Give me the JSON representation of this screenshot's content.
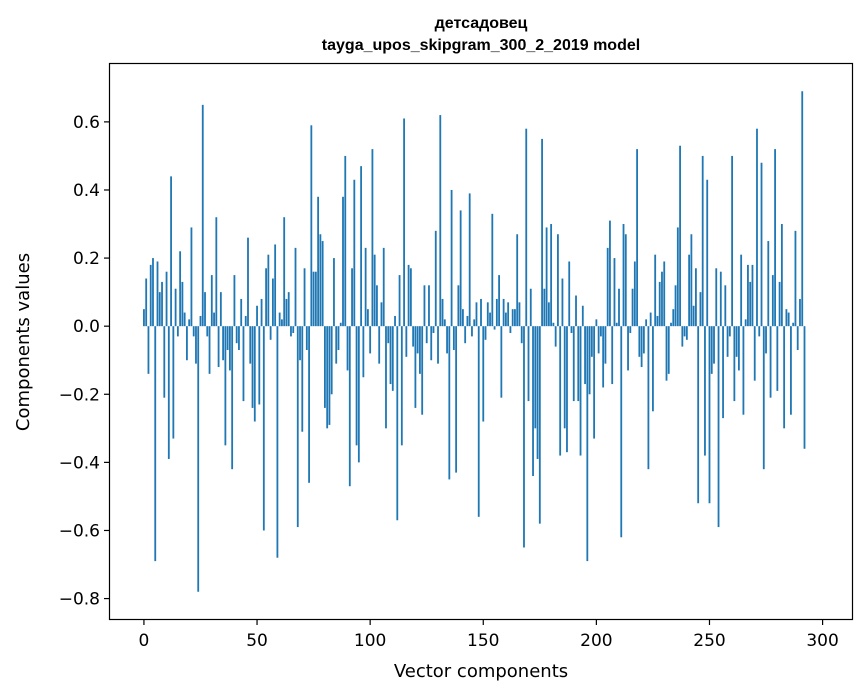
{
  "chart_data": {
    "type": "bar",
    "title": "детсадовец",
    "subtitle": "tayga_upos_skipgram_300_2_2019 model",
    "xlabel": "Vector components",
    "ylabel": "Components values",
    "xlim": [
      -15,
      313
    ],
    "ylim": [
      -0.86,
      0.77
    ],
    "xticks": [
      0,
      50,
      100,
      150,
      200,
      250,
      300
    ],
    "xtick_labels": [
      "0",
      "50",
      "100",
      "150",
      "200",
      "250",
      "300"
    ],
    "yticks": [
      -0.8,
      -0.6,
      -0.4,
      -0.2,
      0.0,
      0.2,
      0.4,
      0.6
    ],
    "ytick_labels": [
      "−0.8",
      "−0.6",
      "−0.4",
      "−0.2",
      "0.0",
      "0.2",
      "0.4",
      "0.6"
    ],
    "grid": false,
    "bar_color": "#1f77b4",
    "bar_width": 0.8,
    "series": [
      {
        "values": [
          0.05,
          0.14,
          -0.14,
          0.18,
          0.2,
          -0.69,
          0.19,
          0.1,
          0.13,
          -0.21,
          0.16,
          -0.39,
          0.44,
          -0.33,
          0.11,
          -0.03,
          0.22,
          0.13,
          0.04,
          -0.1,
          0.02,
          0.29,
          -0.03,
          -0.11,
          -0.78,
          0.03,
          0.65,
          0.1,
          -0.03,
          -0.14,
          0.15,
          0.04,
          0.32,
          -0.12,
          0.1,
          -0.1,
          -0.35,
          -0.07,
          -0.13,
          -0.42,
          0.15,
          -0.05,
          -0.07,
          0.08,
          -0.22,
          0.03,
          0.26,
          -0.11,
          -0.24,
          -0.28,
          0.06,
          -0.23,
          0.08,
          -0.6,
          0.17,
          0.21,
          -0.04,
          0.14,
          0.24,
          -0.68,
          0.04,
          0.02,
          0.32,
          0.08,
          0.1,
          -0.03,
          -0.02,
          0.23,
          -0.59,
          -0.1,
          -0.31,
          0.17,
          -0.07,
          -0.46,
          0.59,
          0.16,
          0.16,
          0.38,
          0.27,
          0.25,
          -0.24,
          -0.3,
          -0.29,
          -0.2,
          0.2,
          -0.11,
          -0.07,
          0.01,
          0.38,
          0.5,
          -0.13,
          -0.47,
          0.17,
          0.43,
          -0.35,
          -0.4,
          0.47,
          -0.15,
          0.23,
          0.05,
          -0.08,
          0.52,
          0.21,
          0.12,
          -0.11,
          0.07,
          0.23,
          -0.3,
          -0.05,
          -0.17,
          -0.19,
          0.03,
          -0.57,
          0.15,
          -0.35,
          0.61,
          -0.09,
          0.18,
          0.17,
          -0.06,
          -0.24,
          -0.08,
          -0.14,
          -0.26,
          0.12,
          -0.05,
          0.12,
          -0.1,
          -0.02,
          0.28,
          -0.11,
          0.62,
          0.08,
          0.02,
          -0.08,
          -0.45,
          0.4,
          -0.07,
          -0.43,
          0.12,
          0.34,
          0.05,
          -0.05,
          0.03,
          0.39,
          -0.03,
          0.02,
          0.07,
          -0.56,
          0.08,
          -0.28,
          -0.04,
          0.07,
          0.04,
          0.33,
          -0.01,
          0.08,
          0.15,
          -0.21,
          0.08,
          0.04,
          0.07,
          -0.02,
          0.05,
          0.05,
          0.27,
          0.07,
          -0.05,
          -0.65,
          0.58,
          -0.22,
          0.11,
          -0.44,
          -0.3,
          -0.39,
          -0.58,
          0.55,
          0.11,
          0.29,
          0.07,
          0.3,
          0.01,
          -0.06,
          0.27,
          -0.38,
          0.14,
          -0.3,
          -0.37,
          0.19,
          -0.02,
          -0.22,
          0.09,
          -0.22,
          -0.38,
          0.06,
          -0.17,
          -0.69,
          -0.2,
          -0.09,
          -0.33,
          0.02,
          -0.08,
          -0.03,
          -0.18,
          -0.11,
          0.23,
          0.31,
          -0.17,
          0.2,
          0.01,
          0.11,
          -0.62,
          0.3,
          0.27,
          -0.13,
          -0.02,
          0.11,
          0.19,
          0.52,
          -0.09,
          -0.12,
          -0.08,
          0.02,
          -0.42,
          0.04,
          -0.25,
          0.21,
          0.03,
          0.13,
          0.16,
          0.19,
          -0.16,
          -0.14,
          0.01,
          0.05,
          0.12,
          0.29,
          0.53,
          -0.06,
          -0.03,
          -0.04,
          0.21,
          0.27,
          0.06,
          0.17,
          -0.52,
          0.1,
          0.5,
          -0.38,
          0.43,
          -0.52,
          -0.14,
          -0.11,
          0.17,
          -0.59,
          0.16,
          -0.27,
          0.12,
          -0.09,
          -0.03,
          0.5,
          -0.22,
          -0.09,
          -0.13,
          0.21,
          -0.26,
          0.02,
          0.18,
          0.13,
          0.18,
          -0.16,
          0.58,
          -0.03,
          0.48,
          -0.42,
          -0.08,
          0.25,
          -0.21,
          0.15,
          0.52,
          -0.19,
          0.13,
          0.3,
          -0.3,
          0.05,
          0.04,
          -0.26,
          0.01,
          0.28,
          -0.07,
          0.08,
          0.69,
          -0.36
        ]
      }
    ]
  }
}
